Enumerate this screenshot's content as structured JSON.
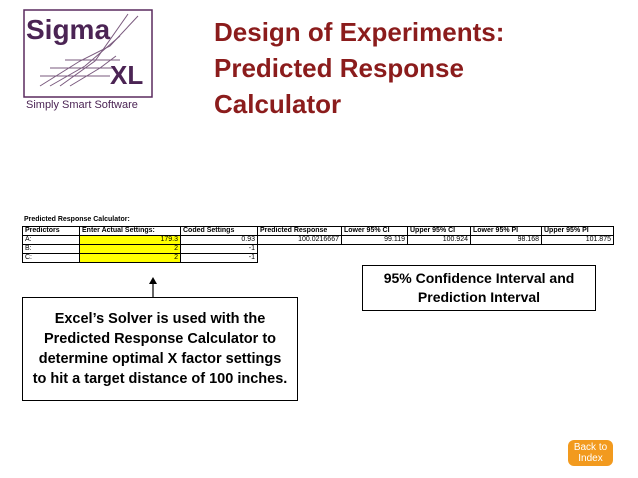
{
  "logo": {
    "name": "Sigma",
    "suffix": "XL",
    "tagline": "Simply Smart Software"
  },
  "title": {
    "lines": [
      "Design of Experiments:",
      "Predicted Response",
      "Calculator"
    ]
  },
  "table": {
    "caption": "Predicted Response Calculator:",
    "header": [
      "Predictors",
      "Enter Actual Settings:",
      "Coded Settings",
      "Predicted Response",
      "Lower 95% CI",
      "Upper 95% CI",
      "Lower 95% PI",
      "Upper 95% PI"
    ],
    "rows": [
      [
        "A:",
        179.3,
        0.93,
        100.0216667,
        99.119,
        100.924,
        98.168,
        101.875
      ],
      [
        "B:",
        2,
        -1
      ],
      [
        "C:",
        2,
        -1
      ]
    ]
  },
  "callouts": {
    "interval": "95% Confidence Interval and Prediction Interval",
    "solver": "Excel’s Solver is used with the Predicted Response Calculator to determine optimal X factor settings to hit a target distance of 100 inches."
  },
  "button": {
    "label": "Back to Index"
  }
}
